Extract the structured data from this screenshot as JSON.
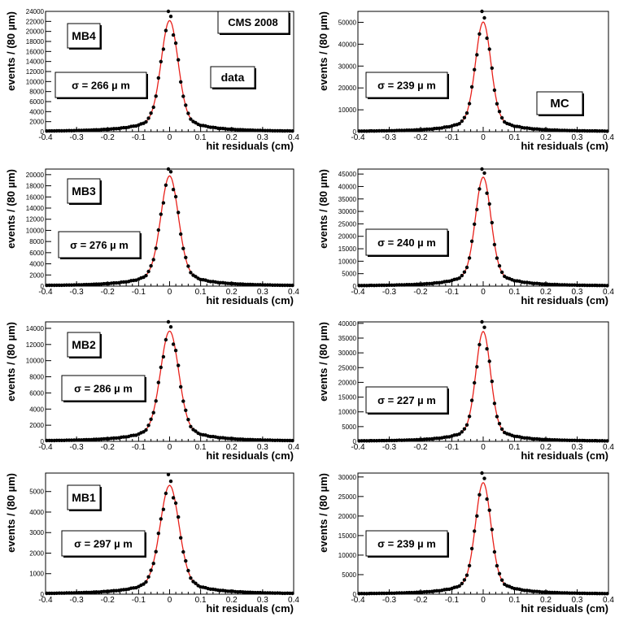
{
  "figure": {
    "title": "CMS 2008",
    "dataset_labels": {
      "data": "data",
      "mc": "MC"
    },
    "xlabel": "hit residuals (cm)",
    "ylabel": "events / (80 µm)",
    "xlim": [
      -0.4,
      0.4
    ],
    "xticks": [
      "-0.4",
      "-0.3",
      "-0.2",
      "-0.1",
      "0",
      "0.1",
      "0.2",
      "0.3",
      "0.4"
    ],
    "colors": {
      "fit": "#e8201a",
      "points": "#000000",
      "axis": "#000000"
    }
  },
  "chart_data": [
    {
      "type": "scatter",
      "station": "MB4",
      "dataset": "data",
      "sigma_text": "σ = 266  µ m",
      "sigma_um": 266,
      "peak": 23200,
      "ylim": [
        0,
        24000
      ],
      "yticks": [
        0,
        2000,
        4000,
        6000,
        8000,
        10000,
        12000,
        14000,
        16000,
        18000,
        20000,
        22000,
        24000
      ],
      "fit": "gaussian+tails"
    },
    {
      "type": "scatter",
      "station": "MB4",
      "dataset": "MC",
      "sigma_text": "σ = 239  µ m",
      "sigma_um": 239,
      "peak": 52500,
      "ylim": [
        0,
        55000
      ],
      "yticks": [
        0,
        10000,
        20000,
        30000,
        40000,
        50000
      ],
      "fit": "gaussian+tails"
    },
    {
      "type": "scatter",
      "station": "MB3",
      "dataset": "data",
      "sigma_text": "σ = 276  µ m",
      "sigma_um": 276,
      "peak": 20700,
      "ylim": [
        0,
        21000
      ],
      "yticks": [
        0,
        2000,
        4000,
        6000,
        8000,
        10000,
        12000,
        14000,
        16000,
        18000,
        20000
      ],
      "fit": "gaussian+tails"
    },
    {
      "type": "scatter",
      "station": "MB3",
      "dataset": "MC",
      "sigma_text": "σ = 240  µ m",
      "sigma_um": 240,
      "peak": 45800,
      "ylim": [
        0,
        47000
      ],
      "yticks": [
        0,
        5000,
        10000,
        15000,
        20000,
        25000,
        30000,
        35000,
        40000,
        45000
      ],
      "fit": "gaussian+tails"
    },
    {
      "type": "scatter",
      "station": "MB2",
      "dataset": "data",
      "sigma_text": "σ = 286  µ m",
      "sigma_um": 286,
      "peak": 14300,
      "ylim": [
        0,
        14800
      ],
      "yticks": [
        0,
        2000,
        4000,
        6000,
        8000,
        10000,
        12000,
        14000
      ],
      "fit": "gaussian+tails"
    },
    {
      "type": "scatter",
      "station": "MB2",
      "dataset": "MC",
      "sigma_text": "σ = 227  µ m",
      "sigma_um": 227,
      "peak": 39000,
      "ylim": [
        0,
        40500
      ],
      "yticks": [
        0,
        5000,
        10000,
        15000,
        20000,
        25000,
        30000,
        35000,
        40000
      ],
      "fit": "gaussian+tails"
    },
    {
      "type": "scatter",
      "station": "MB1",
      "dataset": "data",
      "sigma_text": "σ = 297  µ m",
      "sigma_um": 297,
      "peak": 5550,
      "ylim": [
        0,
        5900
      ],
      "yticks": [
        0,
        1000,
        2000,
        3000,
        4000,
        5000
      ],
      "fit": "gaussian+tails"
    },
    {
      "type": "scatter",
      "station": "MB1",
      "dataset": "MC",
      "sigma_text": "σ = 239  µ m",
      "sigma_um": 239,
      "peak": 29900,
      "ylim": [
        0,
        31000
      ],
      "yticks": [
        0,
        5000,
        10000,
        15000,
        20000,
        25000,
        30000
      ],
      "fit": "gaussian+tails"
    }
  ]
}
